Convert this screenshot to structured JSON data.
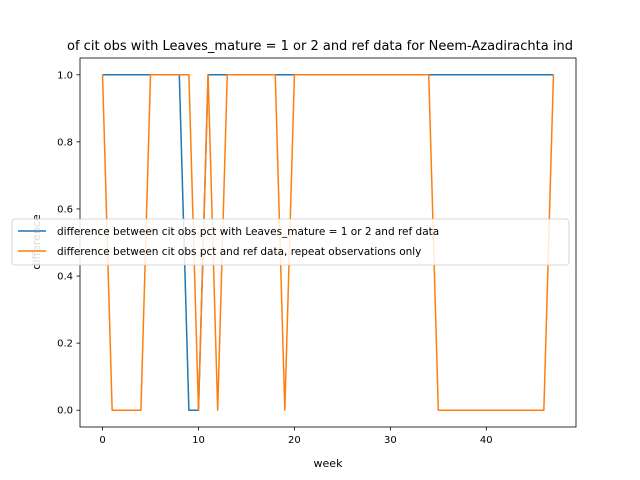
{
  "chart_data": {
    "type": "line",
    "title": "of cit obs with Leaves_mature = 1 or 2 and ref data for Neem-Azadirachta ind",
    "xlabel": "week",
    "ylabel": "difference",
    "xlim": [
      -2.35,
      49.35
    ],
    "ylim": [
      -0.05,
      1.05
    ],
    "xticks": [
      0,
      10,
      20,
      30,
      40
    ],
    "yticks": [
      0.0,
      0.2,
      0.4,
      0.6,
      0.8,
      1.0
    ],
    "xtick_labels": [
      "0",
      "10",
      "20",
      "30",
      "40"
    ],
    "ytick_labels": [
      "0.0",
      "0.2",
      "0.4",
      "0.6",
      "0.8",
      "1.0"
    ],
    "grid": false,
    "legend_position": "center-left",
    "series": [
      {
        "name": "difference between cit obs pct with Leaves_mature = 1 or 2 and ref data",
        "color": "#1f77b4",
        "x": [
          0,
          1,
          2,
          3,
          4,
          5,
          6,
          7,
          8,
          9,
          10,
          11,
          12,
          13,
          14,
          15,
          16,
          17,
          18,
          19,
          20,
          21,
          22,
          23,
          24,
          25,
          26,
          27,
          28,
          29,
          30,
          31,
          32,
          33,
          34,
          35,
          36,
          37,
          38,
          39,
          40,
          41,
          42,
          43,
          44,
          45,
          46,
          47
        ],
        "y": [
          1,
          1,
          1,
          1,
          1,
          1,
          1,
          1,
          1,
          0,
          0,
          1,
          1,
          1,
          1,
          1,
          1,
          1,
          1,
          1,
          1,
          1,
          1,
          1,
          1,
          1,
          1,
          1,
          1,
          1,
          1,
          1,
          1,
          1,
          1,
          1,
          1,
          1,
          1,
          1,
          1,
          1,
          1,
          1,
          1,
          1,
          1,
          1
        ]
      },
      {
        "name": "difference between cit obs pct and ref data, repeat observations only",
        "color": "#ff7f0e",
        "x": [
          0,
          1,
          2,
          3,
          4,
          5,
          6,
          7,
          8,
          9,
          10,
          11,
          12,
          13,
          14,
          15,
          16,
          17,
          18,
          19,
          20,
          21,
          22,
          23,
          24,
          25,
          26,
          27,
          28,
          29,
          30,
          31,
          32,
          33,
          34,
          35,
          36,
          37,
          38,
          39,
          40,
          41,
          42,
          43,
          44,
          45,
          46,
          47
        ],
        "y": [
          1,
          0,
          0,
          0,
          0,
          1,
          1,
          1,
          1,
          1,
          0,
          1,
          0,
          1,
          1,
          1,
          1,
          1,
          1,
          0,
          1,
          1,
          1,
          1,
          1,
          1,
          1,
          1,
          1,
          1,
          1,
          1,
          1,
          1,
          1,
          0,
          0,
          0,
          0,
          0,
          0,
          0,
          0,
          0,
          0,
          0,
          0,
          1
        ]
      }
    ]
  }
}
